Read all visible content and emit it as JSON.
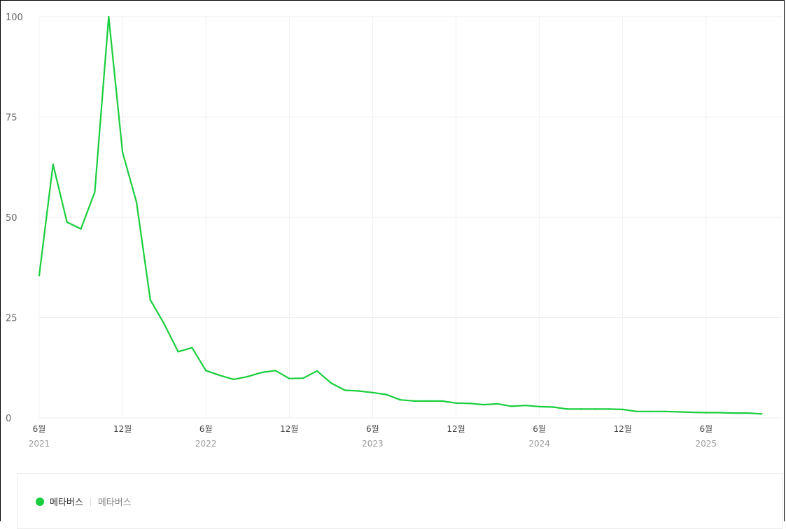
{
  "chart_data": {
    "type": "line",
    "title": "",
    "xlabel": "",
    "ylabel": "",
    "ylim": [
      0,
      100
    ],
    "y_ticks": [
      "0",
      "25",
      "50",
      "75",
      "100"
    ],
    "x_ticks": [
      {
        "month": "6월",
        "year": "2021",
        "index": 0
      },
      {
        "month": "12월",
        "year": "",
        "index": 6
      },
      {
        "month": "6월",
        "year": "2022",
        "index": 12
      },
      {
        "month": "12월",
        "year": "",
        "index": 18
      },
      {
        "month": "6월",
        "year": "2023",
        "index": 24
      },
      {
        "month": "12월",
        "year": "",
        "index": 30
      },
      {
        "month": "6월",
        "year": "2024",
        "index": 36
      },
      {
        "month": "12월",
        "year": "",
        "index": 42
      },
      {
        "month": "6월",
        "year": "2025",
        "index": 48
      }
    ],
    "grid": true,
    "legend_position": "bottom-left",
    "series": [
      {
        "name": "메타버스",
        "color": "#19ce3c",
        "x": [
          "2021-06",
          "2021-07",
          "2021-08",
          "2021-09",
          "2021-10",
          "2021-11",
          "2021-12",
          "2022-01",
          "2022-02",
          "2022-03",
          "2022-04",
          "2022-05",
          "2022-06",
          "2022-07",
          "2022-08",
          "2022-09",
          "2022-10",
          "2022-11",
          "2022-12",
          "2023-01",
          "2023-02",
          "2023-03",
          "2023-04",
          "2023-05",
          "2023-06",
          "2023-07",
          "2023-08",
          "2023-09",
          "2023-10",
          "2023-11",
          "2023-12",
          "2024-01",
          "2024-02",
          "2024-03",
          "2024-04",
          "2024-05",
          "2024-06",
          "2024-07",
          "2024-08",
          "2024-09",
          "2024-10",
          "2024-11",
          "2024-12",
          "2025-01",
          "2025-02",
          "2025-03",
          "2025-04",
          "2025-05",
          "2025-06",
          "2025-07",
          "2025-08",
          "2025-09",
          "2025-10"
        ],
        "values": [
          35.5,
          63.2,
          48.8,
          47.1,
          56.3,
          100,
          66.2,
          53.8,
          29.4,
          23.4,
          16.5,
          17.5,
          11.8,
          10.6,
          9.6,
          10.3,
          11.3,
          11.8,
          9.8,
          9.9,
          11.7,
          8.7,
          6.9,
          6.7,
          6.3,
          5.8,
          4.5,
          4.2,
          4.2,
          4.2,
          3.7,
          3.6,
          3.3,
          3.5,
          2.9,
          3.1,
          2.8,
          2.7,
          2.2,
          2.2,
          2.2,
          2.2,
          2.1,
          1.6,
          1.6,
          1.6,
          1.5,
          1.4,
          1.3,
          1.3,
          1.2,
          1.2,
          1.0
        ]
      }
    ]
  },
  "legend": {
    "label": "메타버스",
    "sublabel": "메타버스",
    "color": "#19ce3c"
  }
}
